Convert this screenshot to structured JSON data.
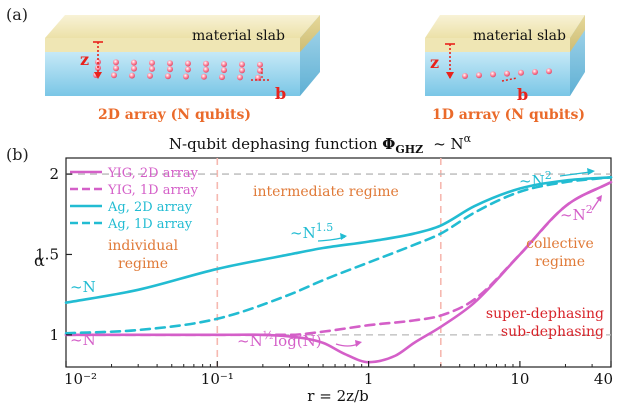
{
  "panel_a": {
    "label": "(a)",
    "left": {
      "slab_label": "material slab",
      "z_label": "z",
      "b_label": "b",
      "caption": "2D array (N qubits)"
    },
    "right": {
      "slab_label": "material slab",
      "z_label": "z",
      "b_label": "b",
      "caption": "1D array (N qubits)"
    }
  },
  "panel_b": {
    "label": "(b)",
    "title_prefix": "N-qubit dephasing function ",
    "title_symbol": "Φ",
    "title_subscript": "GHZ",
    "title_scaling": "~ N",
    "title_exponent": "α"
  },
  "colors": {
    "yig": "#d45fc8",
    "ag": "#22bcd2",
    "regime_text": "#e07a38",
    "dephasing_text": "#d8232a",
    "z_b_marker": "#e8221c",
    "caption_2d": "#ea6a2a",
    "caption_1d": "#ea6a2a",
    "slab_top": "#f6eec4",
    "substrate": "#8fd0ec",
    "vline": "#f6b8b0",
    "hline": "#b9b9b9"
  },
  "annotations": {
    "intermediate": "intermediate regime",
    "individual_1": "individual",
    "individual_2": "regime",
    "collective_1": "collective",
    "collective_2": "regime",
    "super": "super-dephasing",
    "sub": "sub-dephasing",
    "n15_base": "~N",
    "n15_exp": "1.5",
    "n2_top_base": "~N",
    "n2_top_exp": "2",
    "n2_right_base": "~N",
    "n2_right_exp": "2",
    "n_ag": "~N",
    "n_yig": "~N",
    "logn_base": "~N",
    "logn_exp": "½",
    "logn_tail": "log(N)"
  },
  "chart_data": {
    "type": "line",
    "title": "N-qubit dephasing function ΦGHZ ~ Nα",
    "xlabel": "r = 2z/b",
    "ylabel": "α",
    "xscale": "log",
    "xlim": [
      0.01,
      40
    ],
    "ylim": [
      0.8,
      2.1
    ],
    "xticks": [
      "10⁻²",
      "10⁻¹",
      "1",
      "10",
      "40"
    ],
    "xtick_values": [
      0.01,
      0.1,
      1,
      10,
      40
    ],
    "yticks": [
      "1",
      "1.5",
      "2"
    ],
    "ytick_values": [
      1,
      1.5,
      2
    ],
    "reference_lines": {
      "horizontal": [
        1,
        2
      ],
      "vertical": [
        0.1,
        3
      ]
    },
    "legend_position": "top-left",
    "series": [
      {
        "name": "YIG,  2D array",
        "color": "#d45fc8",
        "style": "solid",
        "x": [
          0.01,
          0.03,
          0.1,
          0.3,
          0.5,
          0.7,
          1,
          1.5,
          2,
          3,
          5,
          10,
          20,
          40
        ],
        "y": [
          1.0,
          1.0,
          1.0,
          0.99,
          0.95,
          0.88,
          0.83,
          0.87,
          0.95,
          1.05,
          1.2,
          1.5,
          1.8,
          1.95
        ]
      },
      {
        "name": "YIG,  1D array",
        "color": "#d45fc8",
        "style": "dashed",
        "x": [
          0.01,
          0.03,
          0.1,
          0.3,
          0.5,
          1,
          2,
          3,
          5,
          10,
          20,
          40
        ],
        "y": [
          1.0,
          1.0,
          1.0,
          1.0,
          1.02,
          1.06,
          1.09,
          1.12,
          1.22,
          1.5,
          1.8,
          1.95
        ]
      },
      {
        "name": "Ag,   2D array",
        "color": "#22bcd2",
        "style": "solid",
        "x": [
          0.01,
          0.03,
          0.1,
          0.3,
          0.5,
          1,
          2,
          3,
          5,
          10,
          20,
          40
        ],
        "y": [
          1.2,
          1.28,
          1.41,
          1.5,
          1.54,
          1.58,
          1.63,
          1.68,
          1.8,
          1.91,
          1.96,
          1.98
        ]
      },
      {
        "name": "Ag,   1D array",
        "color": "#22bcd2",
        "style": "dashed",
        "x": [
          0.01,
          0.03,
          0.1,
          0.3,
          0.5,
          1,
          2,
          3,
          5,
          10,
          20,
          40
        ],
        "y": [
          1.01,
          1.03,
          1.1,
          1.25,
          1.34,
          1.45,
          1.56,
          1.63,
          1.76,
          1.89,
          1.95,
          1.98
        ]
      }
    ]
  }
}
